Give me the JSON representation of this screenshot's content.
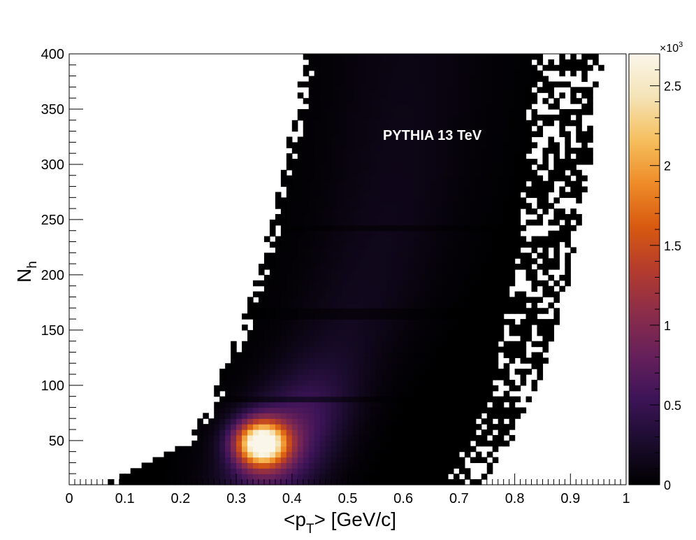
{
  "chart_data": {
    "type": "heatmap",
    "title": "",
    "annotation": "PYTHIA  13 TeV",
    "xlabel": {
      "main": "<p",
      "sub": "T",
      "rest": "> [GeV/c]"
    },
    "ylabel": {
      "main": "N",
      "sub": "h"
    },
    "xlim": [
      0,
      1
    ],
    "ylim": [
      10,
      400
    ],
    "x_ticks": [
      {
        "value": 0,
        "label": "0"
      },
      {
        "value": 0.1,
        "label": "0.1"
      },
      {
        "value": 0.2,
        "label": "0.2"
      },
      {
        "value": 0.3,
        "label": "0.3"
      },
      {
        "value": 0.4,
        "label": "0.4"
      },
      {
        "value": 0.5,
        "label": "0.5"
      },
      {
        "value": 0.6,
        "label": "0.6"
      },
      {
        "value": 0.7,
        "label": "0.7"
      },
      {
        "value": 0.8,
        "label": "0.8"
      },
      {
        "value": 0.9,
        "label": "0.9"
      },
      {
        "value": 1,
        "label": "1"
      }
    ],
    "y_ticks": [
      {
        "value": 50,
        "label": "50"
      },
      {
        "value": 100,
        "label": "100"
      },
      {
        "value": 150,
        "label": "150"
      },
      {
        "value": 200,
        "label": "200"
      },
      {
        "value": 250,
        "label": "250"
      },
      {
        "value": 300,
        "label": "300"
      },
      {
        "value": 350,
        "label": "350"
      },
      {
        "value": 400,
        "label": "400"
      }
    ],
    "colorbar": {
      "range": [
        0,
        2700
      ],
      "multiplier_base": "×10",
      "multiplier_exp": "3",
      "ticks": [
        {
          "value": 0,
          "label": "0"
        },
        {
          "value": 500,
          "label": "0.5"
        },
        {
          "value": 1000,
          "label": "1"
        },
        {
          "value": 1500,
          "label": "1.5"
        },
        {
          "value": 2000,
          "label": "2"
        },
        {
          "value": 2500,
          "label": "2.5"
        }
      ],
      "colors": [
        "#000000",
        "#1b0c2e",
        "#3d1458",
        "#66205a",
        "#8c2d4a",
        "#b43c2c",
        "#d85a10",
        "#ee8c28",
        "#f6bf5e",
        "#f4e3b6",
        "#fbf6ea"
      ]
    },
    "bins": {
      "nx": 100,
      "ny": 78
    },
    "distribution": {
      "peak": {
        "x": 0.345,
        "y": 48,
        "value": 2700
      },
      "background_level": 210,
      "ridge": [
        {
          "y": 10,
          "x_left": 0.08,
          "x_center": 0.34,
          "x_right": 0.71
        },
        {
          "y": 50,
          "x_left": 0.23,
          "x_center": 0.36,
          "x_right": 0.76
        },
        {
          "y": 100,
          "x_left": 0.28,
          "x_center": 0.44,
          "x_right": 0.8
        },
        {
          "y": 150,
          "x_left": 0.32,
          "x_center": 0.5,
          "x_right": 0.82
        },
        {
          "y": 200,
          "x_left": 0.35,
          "x_center": 0.54,
          "x_right": 0.84
        },
        {
          "y": 250,
          "x_left": 0.38,
          "x_center": 0.57,
          "x_right": 0.85
        },
        {
          "y": 300,
          "x_left": 0.4,
          "x_center": 0.59,
          "x_right": 0.86
        },
        {
          "y": 350,
          "x_left": 0.42,
          "x_center": 0.6,
          "x_right": 0.86
        },
        {
          "y": 400,
          "x_left": 0.44,
          "x_center": 0.61,
          "x_right": 0.87
        }
      ],
      "dark_bands_y": [
        86,
        165,
        242
      ]
    }
  }
}
